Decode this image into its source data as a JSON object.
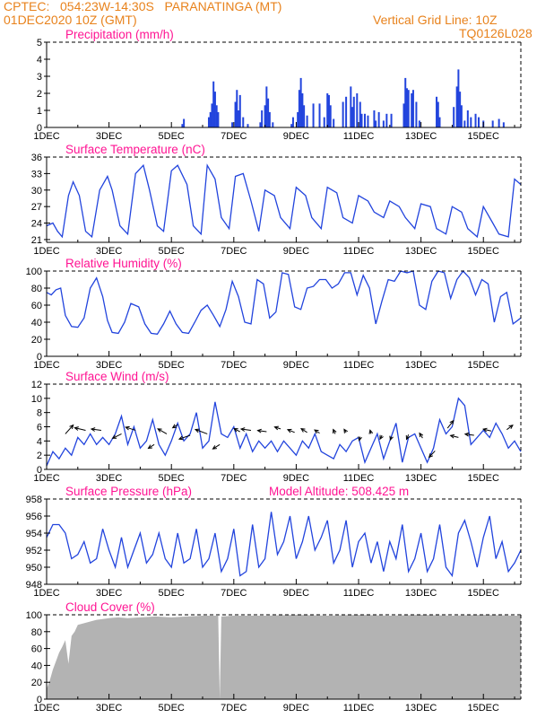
{
  "header": {
    "line1_left": "CPTEC:   054:23W-14:30S   PARANATINGA (MT)",
    "line2_left": "01DEC2020 10Z (GMT)",
    "line2_right": "Vertical Grid Line: 10Z",
    "line3_right": "TQ0126L028"
  },
  "colors": {
    "line": "#2244dd",
    "bar": "#2244dd",
    "cloud": "#b3b3b3",
    "title": "#ff1493",
    "header": "#e8821c"
  },
  "chart_data": [
    {
      "type": "bar",
      "title": "Precipitation (mm/h)",
      "ylim": [
        0,
        5
      ],
      "yticks": [
        0,
        1,
        2,
        3,
        4,
        5
      ],
      "xticks": [
        "1DEC",
        "3DEC",
        "5DEC",
        "7DEC",
        "9DEC",
        "11DEC",
        "13DEC",
        "15DEC"
      ],
      "x_unit": "day offset from 1DEC 10Z",
      "xlim": [
        0,
        15.2
      ],
      "bars": [
        [
          4.35,
          0.2
        ],
        [
          4.4,
          0.5
        ],
        [
          5.2,
          0.6
        ],
        [
          5.25,
          0.9
        ],
        [
          5.3,
          1.4
        ],
        [
          5.35,
          2.7
        ],
        [
          5.4,
          2.1
        ],
        [
          5.45,
          1.3
        ],
        [
          5.5,
          0.9
        ],
        [
          5.95,
          0.3
        ],
        [
          6.05,
          1.5
        ],
        [
          6.1,
          2.2
        ],
        [
          6.15,
          1.0
        ],
        [
          6.2,
          1.9
        ],
        [
          6.3,
          0.6
        ],
        [
          6.45,
          0.2
        ],
        [
          6.85,
          0.3
        ],
        [
          6.9,
          1.0
        ],
        [
          7.0,
          1.3
        ],
        [
          7.05,
          2.4
        ],
        [
          7.1,
          1.7
        ],
        [
          7.15,
          0.9
        ],
        [
          7.25,
          0.3
        ],
        [
          7.85,
          0.2
        ],
        [
          7.9,
          0.6
        ],
        [
          8.05,
          0.9
        ],
        [
          8.1,
          2.2
        ],
        [
          8.15,
          2.9
        ],
        [
          8.2,
          2.0
        ],
        [
          8.25,
          1.3
        ],
        [
          8.35,
          0.7
        ],
        [
          8.55,
          1.4
        ],
        [
          8.75,
          1.4
        ],
        [
          8.9,
          0.6
        ],
        [
          9.0,
          2.0
        ],
        [
          9.05,
          1.9
        ],
        [
          9.1,
          1.3
        ],
        [
          9.2,
          0.5
        ],
        [
          9.5,
          1.5
        ],
        [
          9.6,
          1.8
        ],
        [
          9.75,
          2.4
        ],
        [
          9.8,
          1.2
        ],
        [
          9.85,
          1.8
        ],
        [
          9.95,
          2.0
        ],
        [
          10.05,
          1.5
        ],
        [
          10.1,
          0.8
        ],
        [
          10.2,
          0.8
        ],
        [
          10.3,
          0.7
        ],
        [
          10.5,
          1.0
        ],
        [
          10.55,
          0.4
        ],
        [
          10.65,
          0.9
        ],
        [
          10.8,
          0.4
        ],
        [
          10.9,
          0.8
        ],
        [
          11.05,
          0.8
        ],
        [
          11.45,
          1.4
        ],
        [
          11.5,
          2.9
        ],
        [
          11.55,
          2.3
        ],
        [
          11.6,
          2.2
        ],
        [
          11.7,
          2.0
        ],
        [
          11.75,
          2.2
        ],
        [
          11.85,
          1.5
        ],
        [
          11.95,
          0.4
        ],
        [
          12.5,
          1.8
        ],
        [
          12.55,
          1.5
        ],
        [
          12.6,
          0.6
        ],
        [
          13.05,
          1.2
        ],
        [
          13.15,
          2.4
        ],
        [
          13.2,
          3.4
        ],
        [
          13.25,
          2.1
        ],
        [
          13.3,
          1.3
        ],
        [
          13.4,
          0.4
        ],
        [
          13.5,
          1.0
        ],
        [
          13.6,
          0.6
        ],
        [
          13.75,
          0.8
        ],
        [
          13.85,
          0.6
        ],
        [
          14.0,
          0.4
        ],
        [
          14.3,
          0.4
        ],
        [
          14.5,
          0.5
        ],
        [
          14.65,
          0.3
        ]
      ]
    },
    {
      "type": "line",
      "title": "Surface Temperature (nC)",
      "ylim": [
        20.5,
        36
      ],
      "yticks": [
        21,
        24,
        27,
        30,
        33,
        36
      ],
      "xticks": [
        "1DEC",
        "3DEC",
        "5DEC",
        "7DEC",
        "9DEC",
        "11DEC",
        "13DEC",
        "15DEC"
      ],
      "xlim": [
        0,
        15.2
      ],
      "x": [
        0,
        0.2,
        0.35,
        0.5,
        0.7,
        0.85,
        1.05,
        1.25,
        1.45,
        1.7,
        1.95,
        2.1,
        2.35,
        2.6,
        2.85,
        3.1,
        3.3,
        3.55,
        3.75,
        4.0,
        4.2,
        4.5,
        4.7,
        4.95,
        5.15,
        5.4,
        5.6,
        5.85,
        6.05,
        6.3,
        6.55,
        6.8,
        7.0,
        7.3,
        7.5,
        7.8,
        8.0,
        8.3,
        8.5,
        8.8,
        9.0,
        9.3,
        9.5,
        9.8,
        10.0,
        10.3,
        10.5,
        10.8,
        11.0,
        11.3,
        11.5,
        11.8,
        12.0,
        12.3,
        12.5,
        12.8,
        13.0,
        13.3,
        13.5,
        13.8,
        14.0,
        14.3,
        14.5,
        14.8,
        15.0,
        15.2
      ],
      "y": [
        23.5,
        24,
        22.5,
        21.5,
        29,
        31.5,
        29,
        22.5,
        21.5,
        30,
        32.5,
        30,
        23.5,
        22,
        33,
        34.5,
        30,
        23.5,
        22.5,
        33.5,
        34.5,
        31,
        23.5,
        22,
        34.5,
        32,
        25,
        23,
        32.5,
        33,
        28,
        22.5,
        30,
        29,
        25,
        23,
        30.5,
        29,
        25,
        23,
        30.5,
        29.5,
        25,
        24,
        29,
        28,
        26,
        25,
        28,
        27,
        25,
        23,
        27.5,
        27,
        23,
        22,
        27,
        26,
        23,
        21.5,
        27,
        24,
        22,
        21.5,
        32,
        31
      ]
    },
    {
      "type": "line",
      "title": "Relative Humidity (%)",
      "ylim": [
        0,
        100
      ],
      "yticks": [
        0,
        20,
        40,
        60,
        80,
        100
      ],
      "xticks": [
        "1DEC",
        "3DEC",
        "5DEC",
        "7DEC",
        "9DEC",
        "11DEC",
        "13DEC",
        "15DEC"
      ],
      "xlim": [
        0,
        15.2
      ],
      "x": [
        0,
        0.15,
        0.3,
        0.45,
        0.6,
        0.8,
        1.0,
        1.2,
        1.4,
        1.6,
        1.8,
        1.95,
        2.1,
        2.3,
        2.5,
        2.7,
        2.95,
        3.15,
        3.35,
        3.55,
        3.75,
        3.95,
        4.15,
        4.35,
        4.55,
        4.75,
        4.95,
        5.15,
        5.35,
        5.55,
        5.75,
        5.95,
        6.15,
        6.35,
        6.55,
        6.75,
        6.95,
        7.15,
        7.35,
        7.55,
        7.75,
        7.95,
        8.15,
        8.35,
        8.55,
        8.75,
        8.95,
        9.15,
        9.35,
        9.55,
        9.75,
        9.95,
        10.15,
        10.35,
        10.55,
        10.75,
        10.95,
        11.15,
        11.35,
        11.55,
        11.75,
        11.95,
        12.15,
        12.35,
        12.55,
        12.75,
        12.95,
        13.15,
        13.35,
        13.55,
        13.75,
        13.95,
        14.15,
        14.35,
        14.55,
        14.75,
        14.95,
        15.2
      ],
      "y": [
        75,
        72,
        78,
        80,
        48,
        35,
        34,
        45,
        80,
        92,
        70,
        42,
        28,
        27,
        40,
        62,
        58,
        38,
        27,
        26,
        38,
        53,
        38,
        28,
        27,
        40,
        54,
        60,
        48,
        35,
        55,
        88,
        70,
        40,
        38,
        90,
        85,
        45,
        52,
        98,
        96,
        58,
        55,
        80,
        82,
        90,
        90,
        80,
        85,
        98,
        98,
        72,
        95,
        80,
        38,
        65,
        90,
        88,
        100,
        98,
        100,
        60,
        55,
        88,
        100,
        98,
        68,
        90,
        100,
        92,
        72,
        90,
        85,
        40,
        70,
        75,
        38,
        45
      ]
    },
    {
      "type": "line",
      "title": "Surface Wind (m/s)",
      "ylim": [
        0,
        12
      ],
      "yticks": [
        0,
        2,
        4,
        6,
        8,
        10,
        12
      ],
      "xticks": [
        "1DEC",
        "3DEC",
        "5DEC",
        "7DEC",
        "9DEC",
        "11DEC",
        "13DEC",
        "15DEC"
      ],
      "xlim": [
        0,
        15.2
      ],
      "x": [
        0,
        0.2,
        0.4,
        0.6,
        0.8,
        1.0,
        1.2,
        1.4,
        1.6,
        1.8,
        2.0,
        2.2,
        2.4,
        2.6,
        2.8,
        3.0,
        3.2,
        3.4,
        3.6,
        3.8,
        4.0,
        4.2,
        4.4,
        4.6,
        4.8,
        5.0,
        5.2,
        5.4,
        5.6,
        5.8,
        6.0,
        6.2,
        6.4,
        6.6,
        6.8,
        7.0,
        7.2,
        7.4,
        7.6,
        7.8,
        8.0,
        8.2,
        8.4,
        8.6,
        8.8,
        9.0,
        9.2,
        9.4,
        9.6,
        9.8,
        10.0,
        10.2,
        10.4,
        10.6,
        10.8,
        11.0,
        11.2,
        11.4,
        11.6,
        11.8,
        12.0,
        12.2,
        12.4,
        12.6,
        12.8,
        13.0,
        13.2,
        13.4,
        13.6,
        13.8,
        14.0,
        14.2,
        14.4,
        14.6,
        14.8,
        15.0,
        15.2
      ],
      "y": [
        0.5,
        2.5,
        1.5,
        3,
        2,
        4.5,
        3.5,
        5,
        3.5,
        4.5,
        3.5,
        5,
        7.5,
        3.5,
        6,
        3,
        4,
        7,
        3.5,
        2,
        4,
        6.5,
        4,
        5,
        8,
        3,
        4,
        9.5,
        5,
        4.5,
        6,
        3,
        5,
        2.5,
        4,
        3,
        4,
        2.5,
        4,
        3,
        2,
        4,
        3,
        5,
        2.5,
        2,
        1.5,
        3.5,
        2.5,
        4,
        4.5,
        1,
        3,
        5,
        1.5,
        4,
        6.5,
        1,
        4.5,
        5,
        3,
        1,
        3,
        7,
        5,
        6,
        10,
        9,
        3.5,
        4.5,
        5.5,
        4.5,
        6.5,
        5,
        3,
        4,
        2.5
      ],
      "arrows": [
        {
          "x": 0.6,
          "y": 5,
          "dx": 0.4,
          "dy": 1.4
        },
        {
          "x": 1.25,
          "y": 5.5,
          "dx": -0.55,
          "dy": 0.4
        },
        {
          "x": 1.75,
          "y": 5.5,
          "dx": -0.5,
          "dy": 0.2
        },
        {
          "x": 2.4,
          "y": 5.0,
          "dx": -0.45,
          "dy": -0.7
        },
        {
          "x": 2.85,
          "y": 5.5,
          "dx": -0.5,
          "dy": 0.5
        },
        {
          "x": 3.45,
          "y": 3.5,
          "dx": -0.3,
          "dy": -0.6
        },
        {
          "x": 3.85,
          "y": 5.0,
          "dx": -0.45,
          "dy": 0.8
        },
        {
          "x": 4.2,
          "y": 6.3,
          "dx": -0.25,
          "dy": -0.5
        },
        {
          "x": 4.6,
          "y": 4.8,
          "dx": -0.55,
          "dy": -0.6
        },
        {
          "x": 5.15,
          "y": 5.0,
          "dx": -0.6,
          "dy": 0.7
        },
        {
          "x": 5.55,
          "y": 3.5,
          "dx": -0.35,
          "dy": -0.7
        },
        {
          "x": 6.2,
          "y": 5.3,
          "dx": -0.3,
          "dy": 0.5
        },
        {
          "x": 6.55,
          "y": 5.5,
          "dx": -0.5,
          "dy": 0.2
        },
        {
          "x": 7.05,
          "y": 5.3,
          "dx": -0.45,
          "dy": 0.2
        },
        {
          "x": 7.5,
          "y": 5.7,
          "dx": -0.3,
          "dy": 0.3
        },
        {
          "x": 7.95,
          "y": 5.2,
          "dx": -0.35,
          "dy": 0.45
        },
        {
          "x": 8.35,
          "y": 5.2,
          "dx": -0.3,
          "dy": 0.6
        },
        {
          "x": 8.75,
          "y": 5.1,
          "dx": -0.25,
          "dy": 0.5
        },
        {
          "x": 9.25,
          "y": 5.0,
          "dx": -0.1,
          "dy": 0.7
        },
        {
          "x": 9.6,
          "y": 5.2,
          "dx": -0.1,
          "dy": 0.5
        },
        {
          "x": 10.05,
          "y": 4.6,
          "dx": -0.05,
          "dy": -0.6
        },
        {
          "x": 10.4,
          "y": 5.0,
          "dx": -0.05,
          "dy": 0.6
        },
        {
          "x": 10.75,
          "y": 4.8,
          "dx": -0.1,
          "dy": -0.6
        },
        {
          "x": 11.05,
          "y": 4.6,
          "dx": -0.05,
          "dy": -0.5
        },
        {
          "x": 11.6,
          "y": 4.9,
          "dx": -0.1,
          "dy": -0.75
        },
        {
          "x": 12.05,
          "y": 4.4,
          "dx": -0.15,
          "dy": 0.8
        },
        {
          "x": 12.45,
          "y": 2.6,
          "dx": -0.3,
          "dy": -1.0
        },
        {
          "x": 12.85,
          "y": 5.8,
          "dx": 0.3,
          "dy": 1.2
        },
        {
          "x": 13.2,
          "y": 4.5,
          "dx": -0.4,
          "dy": 0.3
        },
        {
          "x": 13.7,
          "y": 4.8,
          "dx": -0.45,
          "dy": 0.2
        },
        {
          "x": 14.25,
          "y": 5.4,
          "dx": -0.4,
          "dy": 0.3
        },
        {
          "x": 14.75,
          "y": 5.6,
          "dx": 0.3,
          "dy": 0.7
        }
      ]
    },
    {
      "type": "line",
      "title": "Surface Pressure (hPa)",
      "annotation": "Model Altitude: 508.425  m",
      "ylim": [
        948,
        958
      ],
      "yticks": [
        948,
        950,
        952,
        954,
        956,
        958
      ],
      "xticks": [
        "1DEC",
        "3DEC",
        "5DEC",
        "7DEC",
        "9DEC",
        "11DEC",
        "13DEC",
        "15DEC"
      ],
      "xlim": [
        0,
        15.2
      ],
      "x": [
        0,
        0.2,
        0.4,
        0.6,
        0.8,
        1.0,
        1.2,
        1.4,
        1.6,
        1.8,
        2.0,
        2.2,
        2.4,
        2.6,
        2.8,
        3.0,
        3.2,
        3.4,
        3.6,
        3.8,
        4.0,
        4.2,
        4.4,
        4.6,
        4.8,
        5.0,
        5.2,
        5.4,
        5.6,
        5.8,
        6.0,
        6.2,
        6.4,
        6.6,
        6.8,
        7.0,
        7.2,
        7.4,
        7.6,
        7.8,
        8.0,
        8.2,
        8.4,
        8.6,
        8.8,
        9.0,
        9.2,
        9.4,
        9.6,
        9.8,
        10.0,
        10.2,
        10.4,
        10.6,
        10.8,
        11.0,
        11.2,
        11.4,
        11.6,
        11.8,
        12.0,
        12.2,
        12.4,
        12.6,
        12.8,
        13.0,
        13.2,
        13.4,
        13.6,
        13.8,
        14.0,
        14.2,
        14.4,
        14.6,
        14.8,
        15.0,
        15.2
      ],
      "y": [
        953.5,
        955,
        955,
        954,
        951,
        951.5,
        953,
        950.5,
        951,
        954.5,
        952,
        950,
        953.5,
        950,
        952,
        954,
        950.5,
        951.5,
        954,
        951,
        950,
        954,
        950.5,
        951,
        954.5,
        950,
        951,
        954,
        949.5,
        951,
        954.5,
        949,
        949.5,
        955,
        950,
        951,
        956.5,
        951.5,
        953,
        956,
        951,
        953,
        956,
        952,
        953.5,
        955.5,
        950.5,
        952,
        955.5,
        950,
        953,
        954,
        950.5,
        953,
        949.5,
        953,
        951,
        955,
        949.5,
        951,
        954,
        949.5,
        951,
        955,
        950,
        949,
        954,
        955.5,
        953,
        950,
        953.5,
        956,
        951,
        953,
        949.5,
        950.5,
        952
      ]
    },
    {
      "type": "area",
      "title": "Cloud Cover (%)",
      "ylim": [
        0,
        100
      ],
      "yticks": [
        0,
        20,
        40,
        60,
        80,
        100
      ],
      "xticks": [
        "1DEC",
        "3DEC",
        "5DEC",
        "7DEC",
        "9DEC",
        "11DEC",
        "13DEC",
        "15DEC"
      ],
      "xlim": [
        0,
        15.2
      ],
      "x": [
        0,
        0.1,
        0.2,
        0.3,
        0.4,
        0.5,
        0.6,
        0.7,
        0.8,
        0.9,
        1.0,
        1.2,
        1.4,
        1.6,
        1.8,
        2.0,
        2.3,
        2.6,
        3.0,
        3.5,
        4.0,
        4.5,
        5.0,
        5.5,
        5.55,
        5.6,
        6.0,
        7.0,
        8.0,
        9.0,
        10.0,
        11.0,
        12.0,
        13.0,
        14.0,
        15.0,
        15.2
      ],
      "y": [
        12,
        22,
        35,
        45,
        55,
        62,
        70,
        42,
        75,
        80,
        88,
        90,
        92,
        94,
        95,
        96,
        97,
        96,
        97,
        98,
        97,
        98,
        99,
        99,
        0,
        98,
        99,
        99,
        100,
        99,
        100,
        99,
        100,
        99,
        100,
        99,
        99
      ]
    }
  ]
}
